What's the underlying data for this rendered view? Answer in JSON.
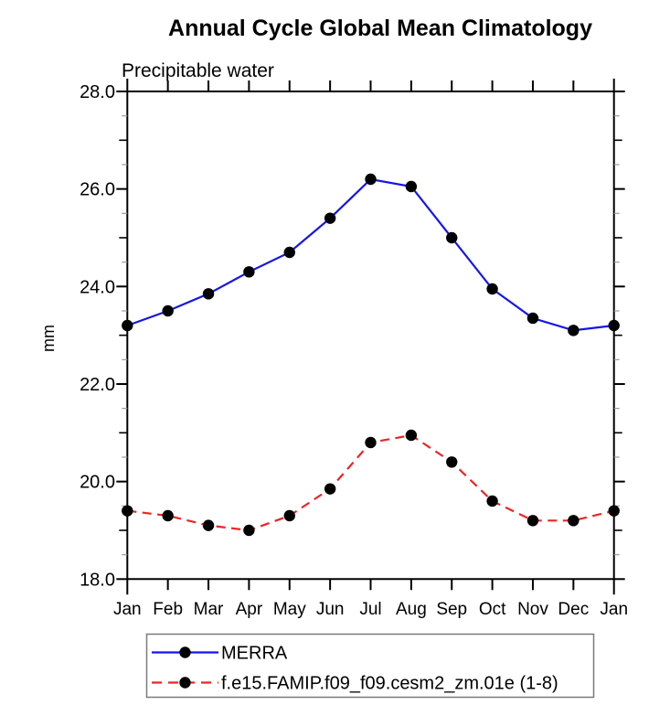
{
  "chart_data": {
    "type": "line",
    "title": "Annual Cycle Global Mean Climatology",
    "subtitle": "Precipitable water",
    "ylabel": "mm",
    "x_categories": [
      "Jan",
      "Feb",
      "Mar",
      "Apr",
      "May",
      "Jun",
      "Jul",
      "Aug",
      "Sep",
      "Oct",
      "Nov",
      "Dec",
      "Jan"
    ],
    "ylim": [
      18.0,
      28.0
    ],
    "ytick_major": [
      18,
      20,
      22,
      24,
      26,
      28
    ],
    "ytick_labels": [
      "18.0",
      "20.0",
      "22.0",
      "24.0",
      "26.0",
      "28.0"
    ],
    "ytick_minor_step": 0.5,
    "grid": false,
    "legend_position": "bottom",
    "series": [
      {
        "name": "MERRA",
        "color": "#1414ee",
        "line_style": "solid",
        "marker": "filled-circle",
        "marker_color": "#000000",
        "values": [
          23.2,
          23.5,
          23.85,
          24.3,
          24.7,
          25.4,
          26.2,
          26.05,
          25.0,
          23.95,
          23.35,
          23.1,
          23.2
        ]
      },
      {
        "name": "f.e15.FAMIP.f09_f09.cesm2_zm.01e (1-8)",
        "color": "#ee2424",
        "line_style": "dashed",
        "marker": "filled-circle",
        "marker_color": "#000000",
        "values": [
          19.4,
          19.3,
          19.1,
          19.0,
          19.3,
          19.85,
          20.8,
          20.95,
          20.4,
          19.6,
          19.2,
          19.2,
          19.4
        ]
      }
    ]
  }
}
